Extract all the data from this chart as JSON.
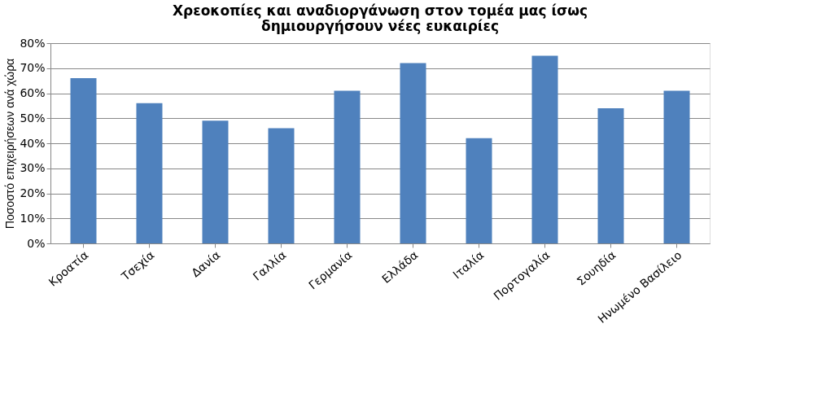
{
  "chart_data": {
    "type": "bar",
    "title": "Χρεοκοπίες και αναδιοργάνωση στον τομέα μας ίσως\nδημιουργήσουν νέες ευκαιρίες",
    "ylabel": "Ποσοστό επιχειρήσεων ανά χώρα",
    "categories": [
      "Κροατία",
      "Τσεχία",
      "Δανία",
      "Γαλλία",
      "Γερμανία",
      "Ελλάδα",
      "Ιταλία",
      "Πορτογαλία",
      "Σουηδία",
      "Ηνωμένο Βασίλειο"
    ],
    "values": [
      66,
      56,
      49,
      46,
      61,
      72,
      42,
      75,
      54,
      61
    ],
    "color": "#4f81bd",
    "ylim": [
      0,
      80
    ],
    "yticks": [
      {
        "value": 0,
        "label": "0%"
      },
      {
        "value": 10,
        "label": "10%"
      },
      {
        "value": 20,
        "label": "20%"
      },
      {
        "value": 30,
        "label": "30%"
      },
      {
        "value": 40,
        "label": "40%"
      },
      {
        "value": 50,
        "label": "50%"
      },
      {
        "value": 60,
        "label": "60%"
      },
      {
        "value": 70,
        "label": "70%"
      },
      {
        "value": 80,
        "label": "80%"
      }
    ],
    "grid": "y"
  }
}
